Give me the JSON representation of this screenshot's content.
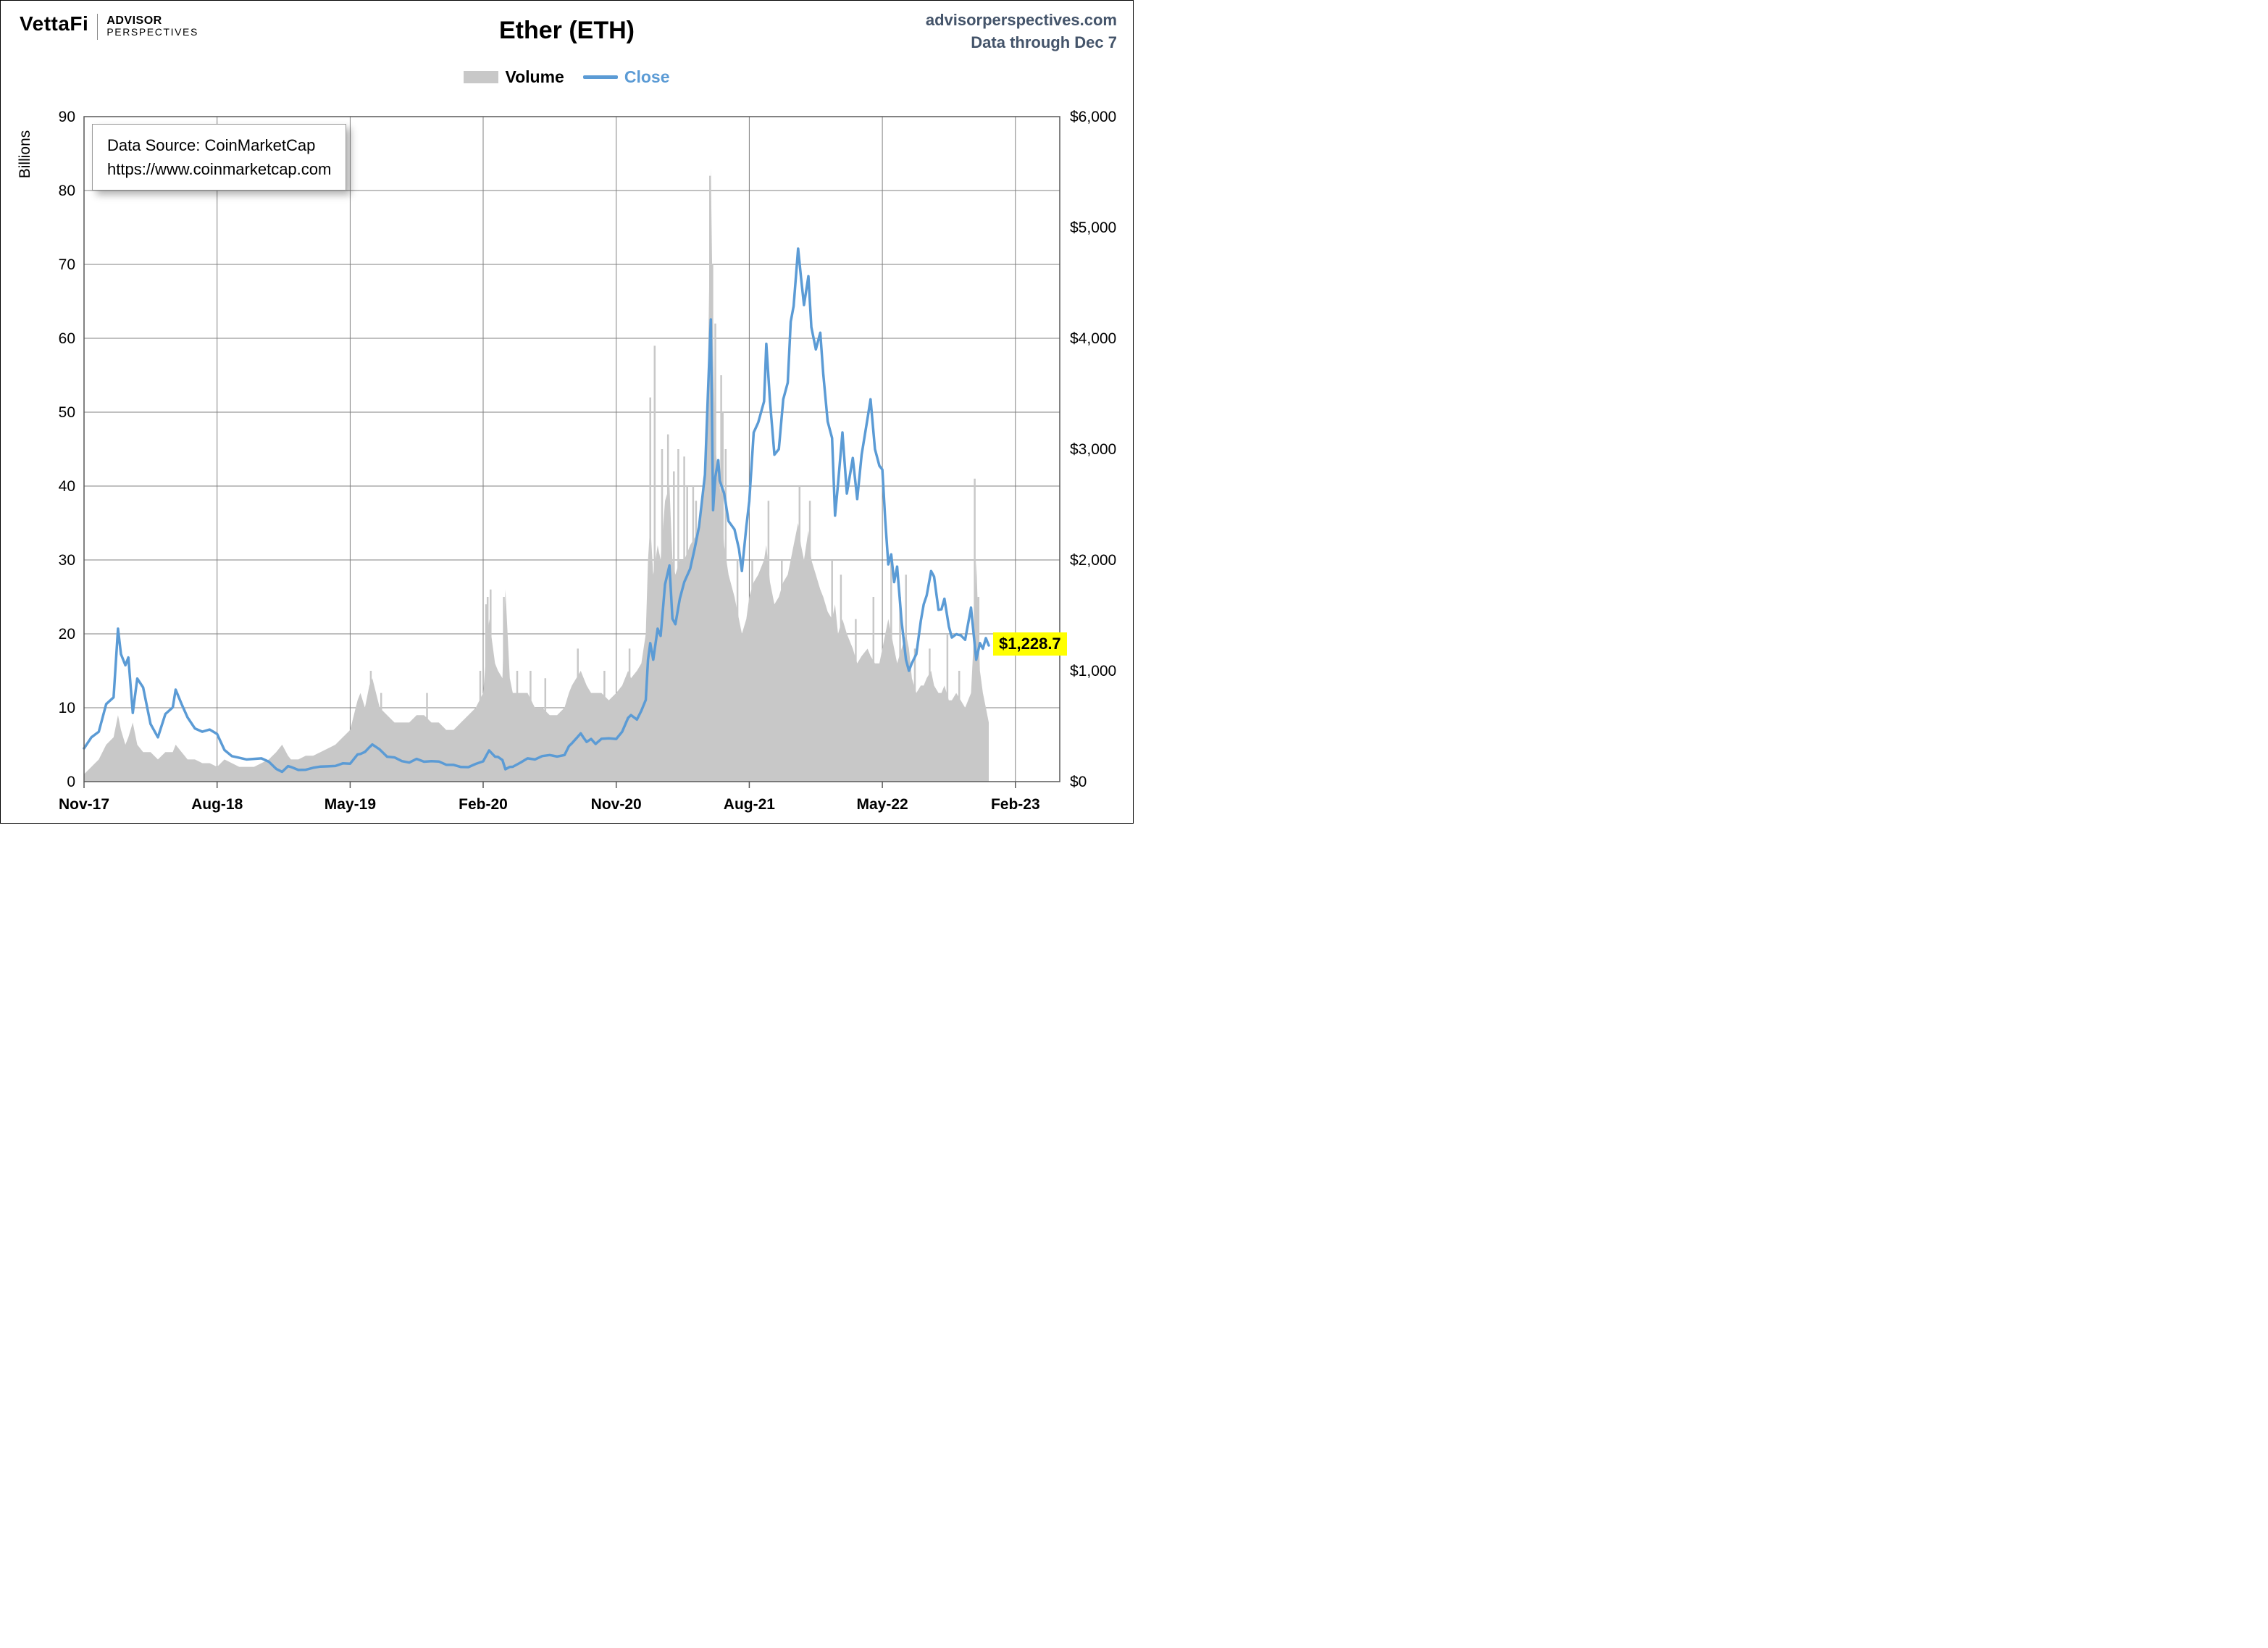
{
  "header": {
    "brand": "VettaFi",
    "brand_sub1": "ADVISOR",
    "brand_sub2": "PERSPECTIVES",
    "title": "Ether (ETH)",
    "site": "advisorperspectives.com",
    "data_through": "Data through Dec 7"
  },
  "legend": {
    "volume_label": "Volume",
    "close_label": "Close"
  },
  "annotations": {
    "source_line1": "Data Source: CoinMarketCap",
    "source_line2": "https://www.coinmarketcap.com",
    "last_price_label": "$1,228.7"
  },
  "colors": {
    "close_line": "#5b9bd5",
    "volume_fill": "#c8c8c8",
    "header_text": "#44546a",
    "highlight": "#ffff00",
    "grid": "#808080"
  },
  "chart_data": {
    "type": "line+bar",
    "title": "Ether (ETH)",
    "series": [
      {
        "name": "Volume",
        "type": "bar",
        "axis": "left",
        "unit": "billions USD",
        "color": "#c8c8c8"
      },
      {
        "name": "Close",
        "type": "line",
        "axis": "right",
        "unit": "USD",
        "color": "#5b9bd5"
      }
    ],
    "x_ticks": [
      "Nov-17",
      "Aug-18",
      "May-19",
      "Feb-20",
      "Nov-20",
      "Aug-21",
      "May-22",
      "Feb-23"
    ],
    "x_tick_positions_months": [
      0,
      9,
      18,
      27,
      36,
      45,
      54,
      63
    ],
    "x_range_months": [
      0,
      66
    ],
    "left_axis": {
      "label": "Billions",
      "min": 0,
      "max": 90,
      "step": 10,
      "tick_labels": [
        "90",
        "80",
        "70",
        "60",
        "50",
        "40",
        "30",
        "20",
        "10",
        "0"
      ]
    },
    "right_axis": {
      "min": 0,
      "max": 6000,
      "step": 1000,
      "tick_labels": [
        "$6,000",
        "$5,000",
        "$4,000",
        "$3,000",
        "$2,000",
        "$1,000",
        "$0"
      ]
    },
    "points_format": [
      "month_index_from_Nov_2017",
      "close_usd",
      "volume_billions_usd"
    ],
    "points": [
      [
        0,
        300,
        1
      ],
      [
        0.5,
        400,
        2
      ],
      [
        1,
        450,
        3
      ],
      [
        1.5,
        700,
        5
      ],
      [
        2,
        760,
        6
      ],
      [
        2.3,
        1380,
        9
      ],
      [
        2.5,
        1150,
        7
      ],
      [
        2.8,
        1050,
        5
      ],
      [
        3,
        1120,
        6
      ],
      [
        3.3,
        620,
        8
      ],
      [
        3.6,
        930,
        5
      ],
      [
        4,
        850,
        4
      ],
      [
        4.5,
        520,
        4
      ],
      [
        5,
        400,
        3
      ],
      [
        5.5,
        610,
        4
      ],
      [
        6,
        670,
        4
      ],
      [
        6.2,
        830,
        5
      ],
      [
        6.6,
        700,
        4
      ],
      [
        7,
        580,
        3
      ],
      [
        7.5,
        480,
        3
      ],
      [
        8,
        450,
        2.5
      ],
      [
        8.5,
        470,
        2.5
      ],
      [
        9,
        430,
        2
      ],
      [
        9.5,
        285,
        3
      ],
      [
        10,
        230,
        2.5
      ],
      [
        10.5,
        215,
        2
      ],
      [
        11,
        200,
        2
      ],
      [
        11.5,
        205,
        2
      ],
      [
        12,
        210,
        2.5
      ],
      [
        12.5,
        180,
        3
      ],
      [
        13,
        115,
        4
      ],
      [
        13.4,
        88,
        5
      ],
      [
        13.8,
        140,
        3.5
      ],
      [
        14,
        132,
        3
      ],
      [
        14.5,
        105,
        3
      ],
      [
        15,
        107,
        3.5
      ],
      [
        15.5,
        125,
        3.5
      ],
      [
        16,
        136,
        4
      ],
      [
        16.5,
        138,
        4.5
      ],
      [
        17,
        141,
        5
      ],
      [
        17.5,
        165,
        6
      ],
      [
        18,
        162,
        7
      ],
      [
        18.5,
        245,
        11
      ],
      [
        18.7,
        250,
        12
      ],
      [
        19,
        268,
        10
      ],
      [
        19.3,
        310,
        13
      ],
      [
        19.5,
        335,
        14
      ],
      [
        20,
        290,
        10
      ],
      [
        20.5,
        225,
        9
      ],
      [
        21,
        218,
        8
      ],
      [
        21.5,
        185,
        8
      ],
      [
        22,
        172,
        8
      ],
      [
        22.5,
        205,
        9
      ],
      [
        23,
        180,
        9
      ],
      [
        23.5,
        185,
        8
      ],
      [
        24,
        182,
        8
      ],
      [
        24.5,
        152,
        7
      ],
      [
        25,
        151,
        7
      ],
      [
        25.5,
        132,
        8
      ],
      [
        26,
        131,
        9
      ],
      [
        26.5,
        160,
        10
      ],
      [
        27,
        183,
        12
      ],
      [
        27.4,
        282,
        22
      ],
      [
        27.8,
        225,
        16
      ],
      [
        28,
        223,
        15
      ],
      [
        28.3,
        195,
        14
      ],
      [
        28.5,
        112,
        26
      ],
      [
        28.8,
        133,
        14
      ],
      [
        29,
        134,
        12
      ],
      [
        29.5,
        170,
        12
      ],
      [
        30,
        210,
        12
      ],
      [
        30.5,
        200,
        10
      ],
      [
        31,
        231,
        10
      ],
      [
        31.5,
        240,
        9
      ],
      [
        32,
        226,
        9
      ],
      [
        32.5,
        240,
        10
      ],
      [
        32.8,
        320,
        12
      ],
      [
        33,
        346,
        13
      ],
      [
        33.3,
        390,
        14
      ],
      [
        33.6,
        435,
        15
      ],
      [
        33.8,
        395,
        14
      ],
      [
        34,
        358,
        13
      ],
      [
        34.3,
        385,
        12
      ],
      [
        34.6,
        340,
        12
      ],
      [
        35,
        386,
        12
      ],
      [
        35.5,
        390,
        11
      ],
      [
        36,
        385,
        12
      ],
      [
        36.4,
        450,
        13
      ],
      [
        36.8,
        575,
        15
      ],
      [
        37,
        600,
        14
      ],
      [
        37.4,
        560,
        15
      ],
      [
        37.7,
        640,
        16
      ],
      [
        38,
        737,
        20
      ],
      [
        38.15,
        1100,
        30
      ],
      [
        38.3,
        1250,
        35
      ],
      [
        38.5,
        1100,
        28
      ],
      [
        38.8,
        1380,
        32
      ],
      [
        39,
        1315,
        30
      ],
      [
        39.3,
        1780,
        38
      ],
      [
        39.6,
        1950,
        40
      ],
      [
        39.8,
        1470,
        30
      ],
      [
        40,
        1420,
        28
      ],
      [
        40.3,
        1650,
        30
      ],
      [
        40.6,
        1800,
        30
      ],
      [
        41,
        1920,
        32
      ],
      [
        41.3,
        2100,
        33
      ],
      [
        41.6,
        2300,
        35
      ],
      [
        42,
        2770,
        40
      ],
      [
        42.2,
        3500,
        55
      ],
      [
        42.4,
        4170,
        83
      ],
      [
        42.55,
        2450,
        60
      ],
      [
        42.7,
        2750,
        45
      ],
      [
        42.9,
        2900,
        42
      ],
      [
        43,
        2715,
        40
      ],
      [
        43.3,
        2600,
        32
      ],
      [
        43.6,
        2350,
        28
      ],
      [
        44,
        2275,
        25
      ],
      [
        44.3,
        2100,
        22
      ],
      [
        44.5,
        1900,
        20
      ],
      [
        44.8,
        2300,
        22
      ],
      [
        45,
        2530,
        25
      ],
      [
        45.3,
        3150,
        27
      ],
      [
        45.6,
        3240,
        28
      ],
      [
        46,
        3430,
        30
      ],
      [
        46.15,
        3950,
        32
      ],
      [
        46.4,
        3430,
        27
      ],
      [
        46.7,
        2950,
        24
      ],
      [
        47,
        3000,
        25
      ],
      [
        47.3,
        3450,
        27
      ],
      [
        47.6,
        3600,
        28
      ],
      [
        47.8,
        4150,
        30
      ],
      [
        48,
        4290,
        32
      ],
      [
        48.3,
        4810,
        35
      ],
      [
        48.5,
        4550,
        32
      ],
      [
        48.7,
        4300,
        30
      ],
      [
        49,
        4560,
        34
      ],
      [
        49.2,
        4100,
        30
      ],
      [
        49.5,
        3900,
        28
      ],
      [
        49.8,
        4050,
        26
      ],
      [
        50,
        3680,
        25
      ],
      [
        50.3,
        3250,
        23
      ],
      [
        50.6,
        3100,
        22
      ],
      [
        50.8,
        2400,
        24
      ],
      [
        51,
        2685,
        20
      ],
      [
        51.3,
        3150,
        22
      ],
      [
        51.6,
        2600,
        20
      ],
      [
        52,
        2920,
        18
      ],
      [
        52.3,
        2550,
        16
      ],
      [
        52.6,
        2950,
        17
      ],
      [
        53,
        3280,
        18
      ],
      [
        53.2,
        3450,
        17
      ],
      [
        53.5,
        3000,
        16
      ],
      [
        53.8,
        2850,
        16
      ],
      [
        54,
        2815,
        18
      ],
      [
        54.2,
        2350,
        20
      ],
      [
        54.4,
        1960,
        22
      ],
      [
        54.6,
        2050,
        20
      ],
      [
        54.8,
        1800,
        18
      ],
      [
        55,
        1940,
        16
      ],
      [
        55.3,
        1450,
        18
      ],
      [
        55.6,
        1100,
        20
      ],
      [
        55.8,
        1000,
        18
      ],
      [
        56,
        1070,
        14
      ],
      [
        56.3,
        1150,
        12
      ],
      [
        56.6,
        1450,
        13
      ],
      [
        56.8,
        1600,
        13
      ],
      [
        57,
        1680,
        14
      ],
      [
        57.3,
        1900,
        15
      ],
      [
        57.5,
        1850,
        13
      ],
      [
        57.8,
        1550,
        12
      ],
      [
        58,
        1555,
        12
      ],
      [
        58.2,
        1650,
        13
      ],
      [
        58.5,
        1400,
        11
      ],
      [
        58.7,
        1300,
        11
      ],
      [
        59,
        1330,
        12
      ],
      [
        59.3,
        1320,
        11
      ],
      [
        59.6,
        1280,
        10
      ],
      [
        60,
        1570,
        12
      ],
      [
        60.2,
        1300,
        20
      ],
      [
        60.35,
        1100,
        30
      ],
      [
        60.6,
        1250,
        15
      ],
      [
        60.8,
        1200,
        12
      ],
      [
        61,
        1295,
        10
      ],
      [
        61.2,
        1228.7,
        8
      ]
    ],
    "volume_spikes": [
      [
        19.4,
        15
      ],
      [
        20.1,
        12
      ],
      [
        23.2,
        12
      ],
      [
        26.8,
        15
      ],
      [
        27.2,
        24
      ],
      [
        27.3,
        25
      ],
      [
        27.5,
        26
      ],
      [
        28.4,
        25
      ],
      [
        29.3,
        15
      ],
      [
        30.2,
        15
      ],
      [
        31.2,
        14
      ],
      [
        33.4,
        18
      ],
      [
        35.2,
        15
      ],
      [
        36.9,
        18
      ],
      [
        38.3,
        52
      ],
      [
        38.6,
        59
      ],
      [
        39.1,
        45
      ],
      [
        39.5,
        47
      ],
      [
        39.9,
        42
      ],
      [
        40.2,
        45
      ],
      [
        40.6,
        44
      ],
      [
        40.8,
        40
      ],
      [
        41.2,
        40
      ],
      [
        41.4,
        38
      ],
      [
        42.35,
        82
      ],
      [
        42.5,
        70
      ],
      [
        42.7,
        62
      ],
      [
        43.1,
        55
      ],
      [
        43.2,
        50
      ],
      [
        43.4,
        45
      ],
      [
        44.2,
        30
      ],
      [
        45.2,
        30
      ],
      [
        46.3,
        38
      ],
      [
        47.2,
        30
      ],
      [
        48.4,
        40
      ],
      [
        49.1,
        38
      ],
      [
        50.6,
        30
      ],
      [
        51.2,
        28
      ],
      [
        52.2,
        22
      ],
      [
        53.4,
        25
      ],
      [
        54.6,
        30
      ],
      [
        55.2,
        25
      ],
      [
        55.6,
        28
      ],
      [
        56.2,
        18
      ],
      [
        57.2,
        18
      ],
      [
        58.4,
        20
      ],
      [
        59.2,
        15
      ],
      [
        60.25,
        41
      ],
      [
        60.5,
        25
      ]
    ],
    "last_point": {
      "date": "Dec 7",
      "close_usd": 1228.7,
      "label": "$1,228.7"
    },
    "legend_position": "top-center",
    "grid": true
  }
}
